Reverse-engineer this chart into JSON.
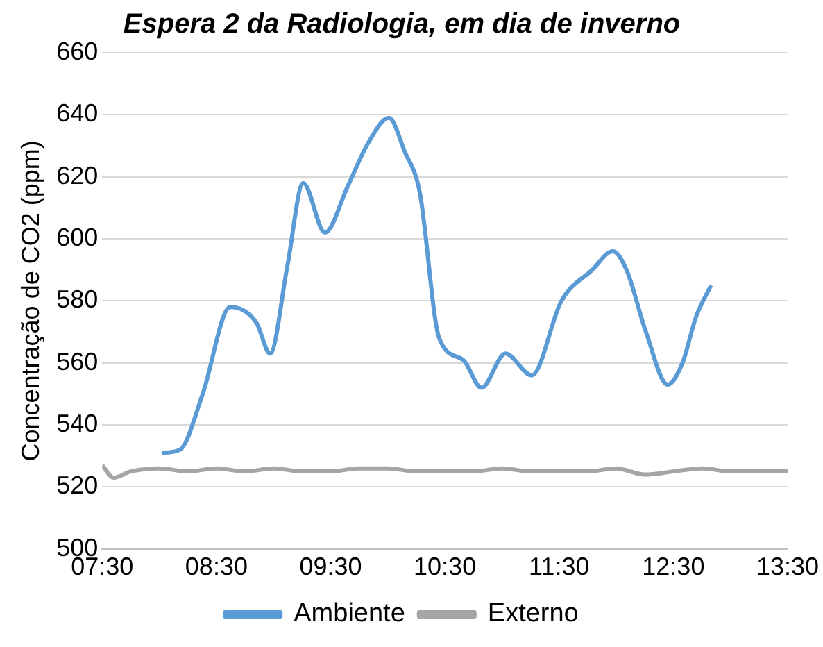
{
  "chart_data": {
    "type": "line",
    "title": "Espera 2 da Radiologia, em dia de inverno",
    "ylabel": "Concentração de CO2 (ppm)",
    "xlim": [
      7.5,
      13.5
    ],
    "xticks": [
      {
        "value": 7.5,
        "label": "07:30"
      },
      {
        "value": 8.5,
        "label": "08:30"
      },
      {
        "value": 9.5,
        "label": "09:30"
      },
      {
        "value": 10.5,
        "label": "10:30"
      },
      {
        "value": 11.5,
        "label": "11:30"
      },
      {
        "value": 12.5,
        "label": "12:30"
      },
      {
        "value": 13.5,
        "label": "13:30"
      }
    ],
    "ylim": [
      500,
      660
    ],
    "yticks": [
      500,
      520,
      540,
      560,
      580,
      600,
      620,
      640,
      660
    ],
    "grid": "y",
    "legend": "bottom",
    "marker": "none",
    "line_style": "solid",
    "series": [
      {
        "name": "Ambiente",
        "color": "#5b9bd5",
        "x": [
          8.02,
          8.18,
          8.38,
          8.62,
          8.85,
          8.97,
          9.12,
          9.26,
          9.45,
          9.65,
          9.83,
          10.01,
          10.15,
          10.28,
          10.45,
          10.66,
          10.82,
          11.03,
          11.26,
          11.52,
          11.79,
          11.97,
          12.09,
          12.26,
          12.45,
          12.58,
          12.7,
          12.83
        ],
        "values": [
          531,
          532,
          550,
          578,
          573,
          563,
          591,
          618,
          602,
          617,
          631,
          639,
          628,
          615,
          568,
          561,
          552,
          563,
          556,
          580,
          590,
          596,
          590,
          570,
          553,
          560,
          575,
          585
        ]
      },
      {
        "name": "Externo",
        "color": "#a5a5a5",
        "x": [
          7.5,
          7.6,
          7.75,
          8,
          8.25,
          8.5,
          8.75,
          9,
          9.25,
          9.5,
          9.75,
          10,
          10.25,
          10.5,
          10.75,
          11,
          11.25,
          11.5,
          11.75,
          12,
          12.25,
          12.5,
          12.75,
          13,
          13.25,
          13.5
        ],
        "values": [
          527,
          523,
          525,
          526,
          525,
          526,
          525,
          526,
          525,
          525,
          526,
          526,
          525,
          525,
          525,
          526,
          525,
          525,
          525,
          526,
          524,
          525,
          526,
          525,
          525,
          525
        ]
      }
    ]
  }
}
